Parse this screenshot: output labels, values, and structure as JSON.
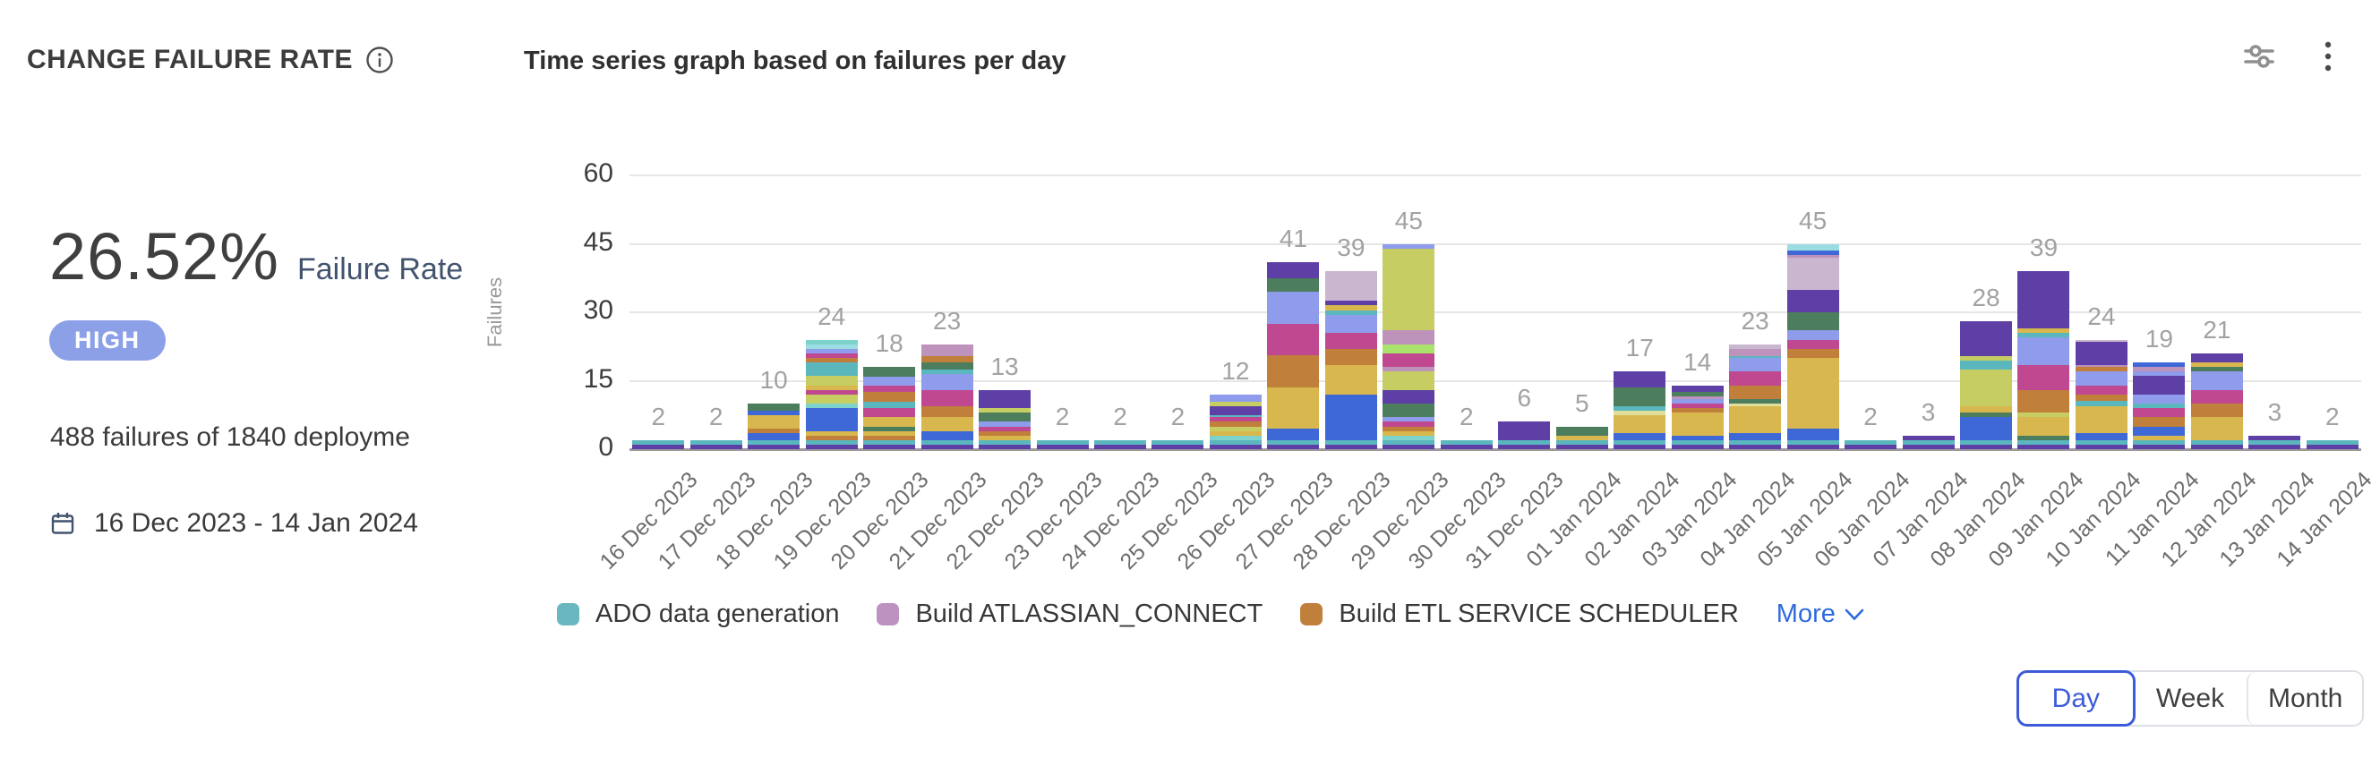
{
  "header": {
    "title": "CHANGE FAILURE RATE",
    "chart_title": "Time series graph based on failures per day"
  },
  "stats": {
    "rate_value": "26.52%",
    "rate_label": "Failure Rate",
    "severity": "HIGH",
    "severity_color": "#8CA0E8",
    "summary": "488 failures of 1840 deployme",
    "date_range": "16 Dec 2023 - 14 Jan 2024"
  },
  "chart_data": {
    "type": "bar",
    "stacked": true,
    "title": "Time series graph based on failures per day",
    "xlabel": "",
    "ylabel": "Failures",
    "ylim": [
      0,
      60
    ],
    "yticks": [
      0,
      15,
      30,
      45,
      60
    ],
    "grid": true,
    "legend_position": "bottom",
    "categories": [
      "16 Dec 2023",
      "17 Dec 2023",
      "18 Dec 2023",
      "19 Dec 2023",
      "20 Dec 2023",
      "21 Dec 2023",
      "22 Dec 2023",
      "23 Dec 2023",
      "24 Dec 2023",
      "25 Dec 2023",
      "26 Dec 2023",
      "27 Dec 2023",
      "28 Dec 2023",
      "29 Dec 2023",
      "30 Dec 2023",
      "31 Dec 2023",
      "01 Jan 2024",
      "02 Jan 2024",
      "03 Jan 2024",
      "04 Jan 2024",
      "05 Jan 2024",
      "06 Jan 2024",
      "07 Jan 2024",
      "08 Jan 2024",
      "09 Jan 2024",
      "10 Jan 2024",
      "11 Jan 2024",
      "12 Jan 2024",
      "13 Jan 2024",
      "14 Jan 2024"
    ],
    "totals": [
      2,
      2,
      10,
      24,
      18,
      23,
      13,
      2,
      2,
      2,
      12,
      41,
      39,
      45,
      2,
      6,
      5,
      17,
      14,
      23,
      45,
      2,
      3,
      28,
      39,
      24,
      19,
      21,
      3,
      2
    ],
    "palette": [
      "#5D3FA6",
      "#5BB7BE",
      "#3F68D7",
      "#C07F3A",
      "#D8B84E",
      "#4C7D5D",
      "#C6CE63",
      "#7DD2CB",
      "#C04890",
      "#8F9BEB",
      "#BD92BB",
      "#C8B7CE",
      "#A9E36C",
      "#9BDCE2",
      "#E0DE9A"
    ],
    "stacks": [
      [
        [
          0,
          1
        ],
        [
          1,
          1
        ]
      ],
      [
        [
          0,
          1
        ],
        [
          1,
          1
        ]
      ],
      [
        [
          0,
          1
        ],
        [
          1,
          1
        ],
        [
          2,
          1.5
        ],
        [
          3,
          1
        ],
        [
          4,
          3
        ],
        [
          2,
          1
        ],
        [
          5,
          1.5
        ]
      ],
      [
        [
          0,
          1
        ],
        [
          1,
          1
        ],
        [
          3,
          1
        ],
        [
          4,
          1
        ],
        [
          2,
          5
        ],
        [
          7,
          1
        ],
        [
          6,
          2
        ],
        [
          8,
          1
        ],
        [
          4,
          1
        ],
        [
          6,
          2
        ],
        [
          1,
          3
        ],
        [
          3,
          1
        ],
        [
          8,
          1
        ],
        [
          9,
          1
        ],
        [
          13,
          1
        ],
        [
          7,
          1
        ]
      ],
      [
        [
          0,
          1
        ],
        [
          1,
          1
        ],
        [
          3,
          1
        ],
        [
          4,
          1
        ],
        [
          5,
          1
        ],
        [
          4,
          2
        ],
        [
          8,
          2
        ],
        [
          1,
          1.5
        ],
        [
          3,
          2
        ],
        [
          8,
          1.5
        ],
        [
          9,
          2
        ],
        [
          5,
          2
        ]
      ],
      [
        [
          0,
          1
        ],
        [
          1,
          1
        ],
        [
          2,
          2
        ],
        [
          4,
          3
        ],
        [
          3,
          2.5
        ],
        [
          8,
          3.5
        ],
        [
          9,
          3.5
        ],
        [
          1,
          1
        ],
        [
          5,
          1.5
        ],
        [
          3,
          1.5
        ],
        [
          10,
          2.5
        ]
      ],
      [
        [
          0,
          1
        ],
        [
          1,
          1
        ],
        [
          4,
          1
        ],
        [
          3,
          1
        ],
        [
          8,
          1
        ],
        [
          9,
          1
        ],
        [
          5,
          2
        ],
        [
          6,
          1
        ],
        [
          0,
          4
        ]
      ],
      [
        [
          0,
          1
        ],
        [
          1,
          1
        ]
      ],
      [
        [
          0,
          1
        ],
        [
          1,
          1
        ]
      ],
      [
        [
          0,
          1
        ],
        [
          1,
          1
        ]
      ],
      [
        [
          0,
          1
        ],
        [
          1,
          1
        ],
        [
          7,
          1
        ],
        [
          4,
          1
        ],
        [
          6,
          1
        ],
        [
          3,
          1
        ],
        [
          8,
          1
        ],
        [
          1,
          0.5
        ],
        [
          0,
          2
        ],
        [
          6,
          1
        ],
        [
          9,
          1.5
        ]
      ],
      [
        [
          0,
          1
        ],
        [
          1,
          1
        ],
        [
          2,
          2.5
        ],
        [
          4,
          9
        ],
        [
          3,
          7
        ],
        [
          8,
          7
        ],
        [
          9,
          7
        ],
        [
          5,
          3
        ],
        [
          0,
          3.5
        ]
      ],
      [
        [
          0,
          1
        ],
        [
          1,
          1
        ],
        [
          2,
          10
        ],
        [
          4,
          6.5
        ],
        [
          3,
          3.5
        ],
        [
          8,
          3.5
        ],
        [
          9,
          4
        ],
        [
          1,
          1
        ],
        [
          4,
          1
        ],
        [
          0,
          1
        ],
        [
          11,
          6.5
        ]
      ],
      [
        [
          0,
          1
        ],
        [
          1,
          1
        ],
        [
          7,
          1
        ],
        [
          4,
          1
        ],
        [
          3,
          1
        ],
        [
          8,
          1
        ],
        [
          9,
          1
        ],
        [
          5,
          3
        ],
        [
          0,
          3
        ],
        [
          6,
          4
        ],
        [
          10,
          1
        ],
        [
          8,
          3
        ],
        [
          12,
          2
        ],
        [
          10,
          3
        ],
        [
          6,
          18
        ],
        [
          9,
          1
        ]
      ],
      [
        [
          0,
          1
        ],
        [
          1,
          1
        ]
      ],
      [
        [
          0,
          1
        ],
        [
          1,
          1
        ],
        [
          0,
          4
        ]
      ],
      [
        [
          0,
          1
        ],
        [
          1,
          1
        ],
        [
          4,
          1
        ],
        [
          5,
          2
        ]
      ],
      [
        [
          0,
          1
        ],
        [
          1,
          1
        ],
        [
          2,
          1.5
        ],
        [
          4,
          4
        ],
        [
          14,
          1
        ],
        [
          1,
          1
        ],
        [
          5,
          4
        ],
        [
          0,
          3.5
        ]
      ],
      [
        [
          0,
          1
        ],
        [
          1,
          1
        ],
        [
          2,
          1
        ],
        [
          4,
          5
        ],
        [
          3,
          1
        ],
        [
          8,
          1
        ],
        [
          9,
          1
        ],
        [
          10,
          0.5
        ],
        [
          5,
          1
        ],
        [
          0,
          1.5
        ]
      ],
      [
        [
          0,
          1
        ],
        [
          1,
          1
        ],
        [
          2,
          1.5
        ],
        [
          4,
          6
        ],
        [
          14,
          0.5
        ],
        [
          5,
          1
        ],
        [
          3,
          3
        ],
        [
          8,
          3
        ],
        [
          9,
          3
        ],
        [
          1,
          0.5
        ],
        [
          10,
          1.5
        ],
        [
          11,
          1
        ]
      ],
      [
        [
          0,
          1
        ],
        [
          1,
          1
        ],
        [
          2,
          2.5
        ],
        [
          4,
          15.5
        ],
        [
          3,
          2
        ],
        [
          8,
          2
        ],
        [
          9,
          2
        ],
        [
          5,
          4
        ],
        [
          0,
          5
        ],
        [
          11,
          7
        ],
        [
          10,
          0.5
        ],
        [
          2,
          1
        ],
        [
          13,
          1.5
        ]
      ],
      [
        [
          0,
          1
        ],
        [
          1,
          1
        ]
      ],
      [
        [
          0,
          1
        ],
        [
          1,
          1
        ],
        [
          0,
          1
        ]
      ],
      [
        [
          0,
          1
        ],
        [
          1,
          1
        ],
        [
          2,
          5
        ],
        [
          5,
          1
        ],
        [
          4,
          1.5
        ],
        [
          6,
          8
        ],
        [
          1,
          2
        ],
        [
          6,
          1
        ],
        [
          0,
          7.5
        ]
      ],
      [
        [
          0,
          1
        ],
        [
          1,
          1
        ],
        [
          5,
          1
        ],
        [
          4,
          4
        ],
        [
          6,
          1
        ],
        [
          3,
          5
        ],
        [
          8,
          5.5
        ],
        [
          9,
          6
        ],
        [
          1,
          1
        ],
        [
          4,
          1
        ],
        [
          0,
          12.5
        ]
      ],
      [
        [
          0,
          1
        ],
        [
          1,
          1
        ],
        [
          2,
          1.5
        ],
        [
          4,
          6
        ],
        [
          1,
          1
        ],
        [
          3,
          1.5
        ],
        [
          8,
          2
        ],
        [
          9,
          3
        ],
        [
          3,
          1
        ],
        [
          10,
          0.5
        ],
        [
          0,
          5
        ],
        [
          11,
          0.5
        ]
      ],
      [
        [
          0,
          1
        ],
        [
          1,
          1
        ],
        [
          4,
          1
        ],
        [
          2,
          2
        ],
        [
          3,
          2
        ],
        [
          8,
          2
        ],
        [
          1,
          1
        ],
        [
          9,
          2
        ],
        [
          0,
          4
        ],
        [
          9,
          1
        ],
        [
          10,
          1
        ],
        [
          2,
          1
        ]
      ],
      [
        [
          0,
          1
        ],
        [
          1,
          1
        ],
        [
          4,
          5
        ],
        [
          3,
          3
        ],
        [
          8,
          3
        ],
        [
          9,
          4
        ],
        [
          5,
          1
        ],
        [
          4,
          1
        ],
        [
          0,
          2
        ]
      ],
      [
        [
          0,
          1
        ],
        [
          1,
          1
        ],
        [
          0,
          1
        ]
      ],
      [
        [
          0,
          1
        ],
        [
          1,
          1
        ]
      ]
    ]
  },
  "legend": {
    "items": [
      {
        "label": "ADO data generation",
        "color": "#6AB7BF"
      },
      {
        "label": "Build ATLASSIAN_CONNECT",
        "color": "#BD92C0"
      },
      {
        "label": "Build ETL SERVICE SCHEDULER",
        "color": "#C07F3A"
      }
    ],
    "more_label": "More",
    "more_color": "#2E6ADE"
  },
  "time_toggle": {
    "options": [
      "Day",
      "Week",
      "Month"
    ],
    "selected": "Day"
  }
}
